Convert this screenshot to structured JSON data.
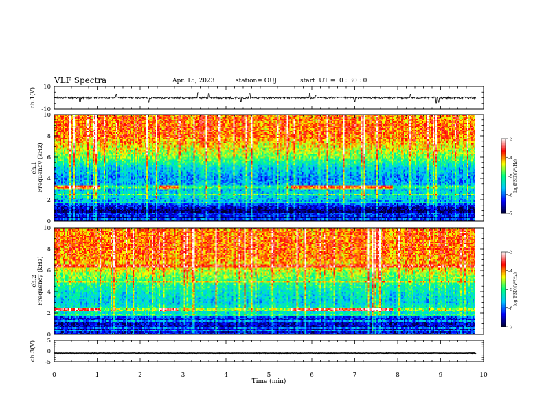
{
  "header": {
    "title": "VLF Spectra",
    "date": "Apr. 15, 2023",
    "station": "station= OUJ",
    "start": "start  UT =  0 : 30 : 0"
  },
  "colors": {
    "colormap": [
      "#000030",
      "#0000ff",
      "#00c8ff",
      "#00ff80",
      "#ffff00",
      "#ff0000",
      "#ffffff"
    ],
    "trace": "#000000"
  },
  "chart_data": [
    {
      "type": "line",
      "name": "ch1-waveform",
      "ylabel": "ch.1(V)",
      "ylim": [
        -10,
        10
      ],
      "yticks": [
        "10",
        "-10"
      ],
      "xlim": [
        0,
        10
      ],
      "baseline": 0,
      "noise_amplitude": 1.5,
      "spikes": [
        {
          "t": 0.6,
          "v": -3.5
        },
        {
          "t": 1.45,
          "v": 3.0
        },
        {
          "t": 2.2,
          "v": -4.0
        },
        {
          "t": 3.35,
          "v": 4.5
        },
        {
          "t": 3.6,
          "v": 3.5
        },
        {
          "t": 4.35,
          "v": -3.5
        },
        {
          "t": 4.55,
          "v": 3.5
        },
        {
          "t": 5.95,
          "v": 4.0
        },
        {
          "t": 6.1,
          "v": 2.5
        },
        {
          "t": 7.0,
          "v": -3.5
        },
        {
          "t": 8.3,
          "v": 3.0
        },
        {
          "t": 8.9,
          "v": -4.5
        },
        {
          "t": 8.95,
          "v": -4.0
        }
      ]
    },
    {
      "type": "heatmap",
      "name": "ch1-spectrogram",
      "ylabel": "ch.1 Frequency (kHz)",
      "ylim": [
        0,
        10
      ],
      "yticks": [
        "0",
        "2",
        "4",
        "6",
        "8",
        "10"
      ],
      "xlim": [
        0,
        10
      ],
      "zlim": [
        -7,
        -3
      ],
      "colorbar_label": "log(PSD)(V²/Hz)",
      "colorbar_ticks": [
        "-3",
        "-4",
        "-5",
        "-6",
        "-7"
      ],
      "profile": [
        {
          "f": 0.0,
          "z": -6.6
        },
        {
          "f": 0.5,
          "z": -6.9
        },
        {
          "f": 1.0,
          "z": -6.8
        },
        {
          "f": 1.5,
          "z": -6.2
        },
        {
          "f": 2.0,
          "z": -5.6
        },
        {
          "f": 2.5,
          "z": -5.4
        },
        {
          "f": 3.0,
          "z": -5.6
        },
        {
          "f": 4.0,
          "z": -5.8
        },
        {
          "f": 5.0,
          "z": -5.5
        },
        {
          "f": 6.0,
          "z": -4.7
        },
        {
          "f": 7.0,
          "z": -4.3
        },
        {
          "f": 8.0,
          "z": -3.9
        },
        {
          "f": 9.0,
          "z": -3.9
        },
        {
          "f": 10.0,
          "z": -4.0
        }
      ],
      "lines_khz": [
        0.2,
        0.5,
        0.7,
        1.7,
        2.5,
        3.2
      ],
      "bright_bands": [
        {
          "t0": 0.0,
          "t1": 1.05,
          "f": 3.15
        },
        {
          "t0": 2.45,
          "t1": 2.9,
          "f": 3.15
        },
        {
          "t0": 5.5,
          "t1": 7.9,
          "f": 3.15
        }
      ],
      "data_end_min": 9.82
    },
    {
      "type": "heatmap",
      "name": "ch2-spectrogram",
      "ylabel": "ch.2 Frequency (kHz)",
      "ylim": [
        0,
        10
      ],
      "yticks": [
        "0",
        "2",
        "4",
        "6",
        "8",
        "10"
      ],
      "xlim": [
        0,
        10
      ],
      "zlim": [
        -7,
        -3
      ],
      "colorbar_label": "log(PSD)(V²/Hz)",
      "colorbar_ticks": [
        "-3",
        "-4",
        "-5",
        "-6",
        "-7"
      ],
      "profile": [
        {
          "f": 0.0,
          "z": -6.3
        },
        {
          "f": 0.5,
          "z": -6.6
        },
        {
          "f": 1.0,
          "z": -6.5
        },
        {
          "f": 1.5,
          "z": -6.3
        },
        {
          "f": 2.0,
          "z": -5.3
        },
        {
          "f": 2.5,
          "z": -5.2
        },
        {
          "f": 3.0,
          "z": -5.5
        },
        {
          "f": 4.0,
          "z": -5.3
        },
        {
          "f": 5.0,
          "z": -4.9
        },
        {
          "f": 6.0,
          "z": -4.4
        },
        {
          "f": 7.0,
          "z": -4.0
        },
        {
          "f": 8.0,
          "z": -3.9
        },
        {
          "f": 9.0,
          "z": -3.9
        },
        {
          "f": 10.0,
          "z": -4.0
        }
      ],
      "lines_khz": [
        0.3,
        0.6,
        1.2,
        1.8,
        2.3,
        4.9,
        6.4
      ],
      "bright_bands": [
        {
          "t0": 0.0,
          "t1": 1.05,
          "f": 2.3
        },
        {
          "t0": 2.45,
          "t1": 2.9,
          "f": 2.3
        },
        {
          "t0": 5.5,
          "t1": 7.9,
          "f": 2.3
        }
      ],
      "data_end_min": 9.82
    },
    {
      "type": "line",
      "name": "ch3-waveform",
      "ylabel": "ch.3(V)",
      "ylim": [
        -5,
        5
      ],
      "yticks": [
        "5",
        "0",
        "-5"
      ],
      "xlim": [
        0,
        10
      ],
      "baseline": -1.0,
      "noise_amplitude": 0.15,
      "xlabel": "Time (min)",
      "xticks": [
        "0",
        "1",
        "2",
        "3",
        "4",
        "5",
        "6",
        "7",
        "8",
        "9",
        "10"
      ]
    }
  ]
}
